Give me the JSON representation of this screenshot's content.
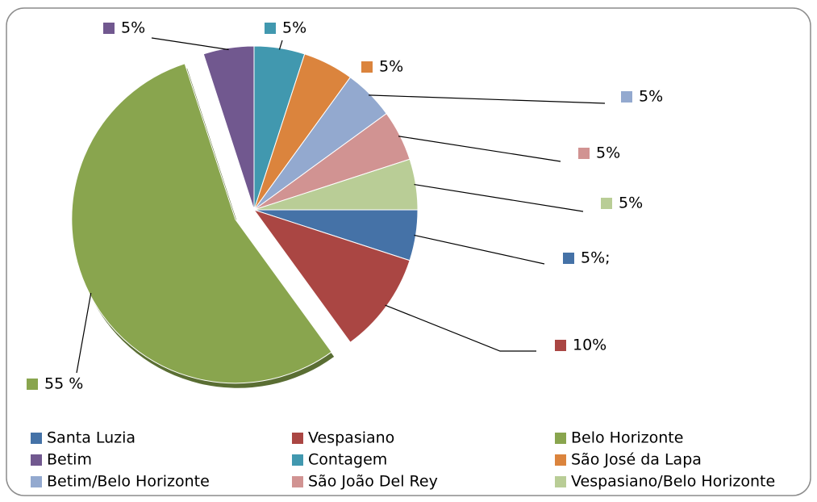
{
  "chart_data": {
    "type": "pie",
    "categories": [
      "Santa Luzia",
      "Vespasiano",
      "Belo Horizonte",
      "Betim",
      "Contagem",
      "São José da Lapa",
      "Betim/Belo Horizonte",
      "São João Del Rey",
      "Vespasiano/Belo Horizonte"
    ],
    "values": [
      5,
      10,
      55,
      5,
      5,
      5,
      5,
      5,
      5
    ],
    "value_labels": [
      "5%;",
      "10%",
      "55 %",
      "5%",
      "5%",
      "5%",
      "5%",
      "5%",
      "5%"
    ],
    "colors": [
      "#4572a7",
      "#aa4643",
      "#89a54e",
      "#71588f",
      "#4198af",
      "#db843d",
      "#93a9cf",
      "#d19392",
      "#b9cd96"
    ],
    "legend": "bottom"
  }
}
